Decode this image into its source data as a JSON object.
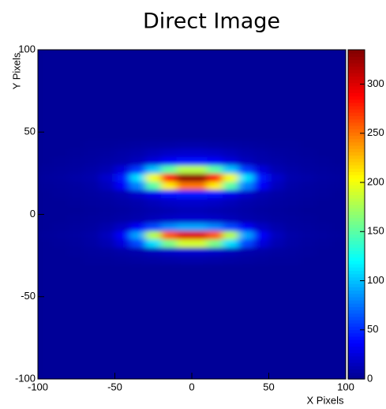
{
  "chart_data": {
    "type": "heatmap",
    "title": "Direct Image",
    "x_label": "X Pixels",
    "y_label": "Y Pixels",
    "xlim": [
      -100,
      100
    ],
    "ylim": [
      -100,
      100
    ],
    "zlim": [
      0,
      335
    ],
    "xticks": [
      -100,
      -50,
      0,
      50,
      100
    ],
    "yticks": [
      -100,
      -50,
      0,
      50,
      100
    ],
    "zticks": [
      0,
      50,
      100,
      150,
      200,
      250,
      300
    ],
    "xbins": [
      -100,
      -90,
      -80,
      -70,
      -60,
      -50,
      -40,
      -30,
      -20,
      -10,
      0,
      10,
      20,
      30,
      40,
      50,
      60,
      70,
      80,
      90,
      100
    ],
    "ybins": [
      -100,
      -95,
      -90,
      -85,
      -80,
      -75,
      -70,
      -65,
      -60,
      -55,
      -50,
      -45,
      -40,
      -35,
      -30,
      -25,
      -20,
      -15,
      -10,
      -5,
      0,
      5,
      10,
      15,
      20,
      25,
      30,
      35,
      40,
      45,
      50,
      55,
      60,
      65,
      70,
      75,
      80,
      85,
      90,
      95,
      100
    ],
    "z": [
      [
        3,
        3,
        3,
        3,
        3,
        3,
        3,
        3,
        3,
        3,
        3,
        3,
        3,
        3,
        3,
        3,
        3,
        3,
        3,
        3
      ],
      [
        3,
        3,
        3,
        3,
        3,
        3,
        3,
        3,
        3,
        3,
        3,
        3,
        3,
        3,
        3,
        3,
        3,
        3,
        3,
        3
      ],
      [
        3,
        3,
        3,
        3,
        3,
        3,
        3,
        3,
        3,
        3,
        3,
        3,
        3,
        3,
        3,
        3,
        3,
        3,
        3,
        3
      ],
      [
        3,
        3,
        3,
        3,
        3,
        3,
        3,
        3,
        3,
        3,
        3,
        3,
        3,
        3,
        3,
        3,
        3,
        3,
        3,
        3
      ],
      [
        3,
        3,
        3,
        3,
        3,
        3,
        3,
        3,
        3,
        3,
        3,
        3,
        3,
        3,
        3,
        3,
        3,
        3,
        3,
        3
      ],
      [
        3,
        3,
        3,
        3,
        3,
        3,
        3,
        3,
        3,
        3,
        3,
        3,
        3,
        3,
        3,
        3,
        3,
        3,
        3,
        3
      ],
      [
        3,
        3,
        3,
        3,
        3,
        3,
        3,
        3,
        3,
        3,
        3,
        3,
        3,
        3,
        3,
        3,
        3,
        3,
        3,
        3
      ],
      [
        3,
        3,
        3,
        3,
        3,
        3,
        3,
        3,
        3,
        3,
        3,
        3,
        3,
        3,
        3,
        3,
        3,
        3,
        3,
        3
      ],
      [
        3,
        3,
        3,
        3,
        3,
        3,
        3,
        3,
        3,
        3,
        3,
        3,
        3,
        3,
        3,
        3,
        3,
        3,
        3,
        3
      ],
      [
        3,
        3,
        3,
        3,
        3,
        3,
        3,
        3,
        3,
        3,
        3,
        3,
        3,
        3,
        3,
        3,
        3,
        3,
        3,
        3
      ],
      [
        3,
        3,
        3,
        3,
        3,
        3,
        3,
        3,
        3,
        3,
        3,
        3,
        3,
        3,
        3,
        3,
        3,
        3,
        3,
        3
      ],
      [
        3,
        3,
        3,
        3,
        3,
        3,
        3,
        3,
        3,
        3,
        3,
        3,
        3,
        3,
        3,
        3,
        3,
        3,
        3,
        3
      ],
      [
        3,
        3,
        3,
        3,
        3,
        3,
        3,
        3,
        3,
        3,
        3,
        3,
        3,
        3,
        3,
        3,
        3,
        3,
        3,
        3
      ],
      [
        3,
        3,
        3,
        3,
        3,
        3,
        3,
        3,
        3,
        3,
        3,
        3,
        3,
        3,
        3,
        3,
        3,
        3,
        3,
        3
      ],
      [
        3,
        3,
        3,
        4,
        4,
        5,
        6,
        7,
        8,
        9,
        9,
        8,
        7,
        6,
        5,
        4,
        4,
        3,
        3,
        3
      ],
      [
        3,
        3,
        4,
        5,
        6,
        8,
        10,
        14,
        18,
        20,
        20,
        18,
        14,
        10,
        8,
        6,
        5,
        4,
        3,
        3
      ],
      [
        3,
        4,
        5,
        7,
        12,
        25,
        60,
        110,
        160,
        190,
        190,
        160,
        110,
        60,
        25,
        12,
        7,
        5,
        4,
        3
      ],
      [
        4,
        5,
        6,
        8,
        15,
        35,
        90,
        180,
        260,
        300,
        300,
        260,
        180,
        90,
        35,
        15,
        8,
        6,
        5,
        4
      ],
      [
        3,
        4,
        5,
        6,
        10,
        18,
        35,
        60,
        80,
        90,
        90,
        80,
        60,
        35,
        18,
        10,
        6,
        5,
        4,
        3
      ],
      [
        3,
        3,
        4,
        5,
        6,
        8,
        10,
        14,
        18,
        20,
        20,
        18,
        14,
        10,
        8,
        6,
        5,
        4,
        3,
        3
      ],
      [
        3,
        3,
        3,
        4,
        5,
        6,
        8,
        10,
        12,
        14,
        14,
        12,
        10,
        8,
        6,
        5,
        4,
        3,
        3,
        3
      ],
      [
        3,
        3,
        4,
        5,
        6,
        8,
        10,
        14,
        18,
        20,
        20,
        18,
        14,
        10,
        8,
        6,
        5,
        4,
        3,
        3
      ],
      [
        3,
        4,
        5,
        6,
        8,
        12,
        20,
        30,
        40,
        45,
        45,
        40,
        30,
        20,
        12,
        8,
        6,
        5,
        4,
        3
      ],
      [
        4,
        5,
        6,
        8,
        15,
        35,
        80,
        150,
        210,
        250,
        250,
        210,
        150,
        80,
        35,
        15,
        8,
        6,
        5,
        4
      ],
      [
        5,
        6,
        8,
        10,
        20,
        45,
        110,
        200,
        280,
        330,
        330,
        280,
        200,
        110,
        45,
        20,
        10,
        8,
        6,
        5
      ],
      [
        4,
        5,
        6,
        8,
        12,
        25,
        55,
        100,
        150,
        180,
        180,
        150,
        100,
        55,
        25,
        12,
        8,
        6,
        5,
        4
      ],
      [
        3,
        4,
        5,
        6,
        8,
        10,
        15,
        25,
        35,
        40,
        40,
        35,
        25,
        15,
        10,
        8,
        6,
        5,
        4,
        3
      ],
      [
        3,
        3,
        4,
        5,
        6,
        8,
        10,
        14,
        18,
        20,
        20,
        18,
        14,
        10,
        8,
        6,
        5,
        4,
        3,
        3
      ],
      [
        3,
        3,
        3,
        4,
        4,
        5,
        6,
        7,
        8,
        9,
        9,
        8,
        7,
        6,
        5,
        4,
        4,
        3,
        3,
        3
      ],
      [
        3,
        3,
        3,
        3,
        3,
        3,
        3,
        3,
        3,
        3,
        3,
        3,
        3,
        3,
        3,
        3,
        3,
        3,
        3,
        3
      ],
      [
        3,
        3,
        3,
        3,
        3,
        3,
        3,
        3,
        3,
        3,
        3,
        3,
        3,
        3,
        3,
        3,
        3,
        3,
        3,
        3
      ],
      [
        3,
        3,
        3,
        3,
        3,
        3,
        3,
        3,
        3,
        3,
        3,
        3,
        3,
        3,
        3,
        3,
        3,
        3,
        3,
        3
      ],
      [
        3,
        3,
        3,
        3,
        3,
        3,
        3,
        3,
        3,
        3,
        3,
        3,
        3,
        3,
        3,
        3,
        3,
        3,
        3,
        3
      ],
      [
        3,
        3,
        3,
        3,
        3,
        3,
        3,
        3,
        3,
        3,
        3,
        3,
        3,
        3,
        3,
        3,
        3,
        3,
        3,
        3
      ],
      [
        3,
        3,
        3,
        3,
        3,
        3,
        3,
        3,
        3,
        3,
        3,
        3,
        3,
        3,
        3,
        3,
        3,
        3,
        3,
        3
      ],
      [
        3,
        3,
        3,
        3,
        3,
        3,
        3,
        3,
        3,
        3,
        3,
        3,
        3,
        3,
        3,
        3,
        3,
        3,
        3,
        3
      ],
      [
        3,
        3,
        3,
        3,
        3,
        3,
        3,
        3,
        3,
        3,
        3,
        3,
        3,
        3,
        3,
        3,
        3,
        3,
        3,
        3
      ],
      [
        3,
        3,
        3,
        3,
        3,
        3,
        3,
        3,
        3,
        3,
        3,
        3,
        3,
        3,
        3,
        3,
        3,
        3,
        3,
        3
      ],
      [
        3,
        3,
        3,
        3,
        3,
        3,
        3,
        3,
        3,
        3,
        3,
        3,
        3,
        3,
        3,
        3,
        3,
        3,
        3,
        3
      ],
      [
        3,
        3,
        3,
        3,
        3,
        3,
        3,
        3,
        3,
        3,
        3,
        3,
        3,
        3,
        3,
        3,
        3,
        3,
        3,
        3
      ]
    ]
  }
}
